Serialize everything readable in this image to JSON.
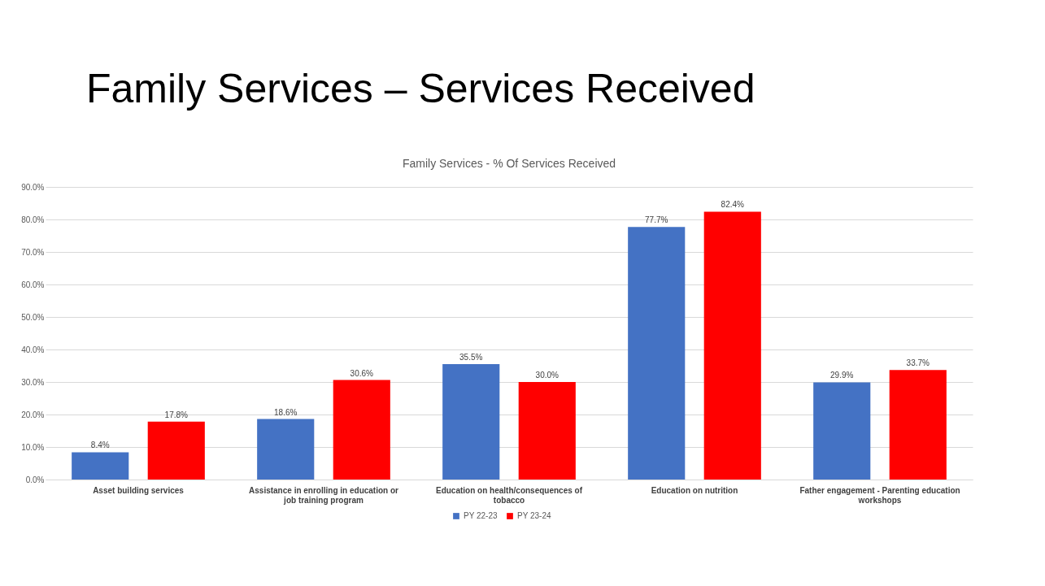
{
  "chart_data": {
    "type": "bar",
    "title": "Family Services – Services Received",
    "subtitle": "Family Services - % Of Services Received",
    "categories": [
      "Asset building services",
      "Assistance in enrolling in education or job training program",
      "Education on health/consequences of tobacco",
      "Education on nutrition",
      "Father engagement - Parenting education workshops"
    ],
    "series": [
      {
        "name": "PY 22-23",
        "color": "#4472c4",
        "values": [
          8.4,
          18.6,
          35.5,
          77.7,
          29.9
        ],
        "value_labels": [
          "8.4%",
          "18.6%",
          "35.5%",
          "77.7%",
          "29.9%"
        ]
      },
      {
        "name": "PY 23-24",
        "color": "#ff0000",
        "values": [
          17.8,
          30.6,
          30.0,
          82.4,
          33.7
        ],
        "value_labels": [
          "17.8%",
          "30.6%",
          "30.0%",
          "82.4%",
          "33.7%"
        ]
      }
    ],
    "ylim": [
      0,
      90
    ],
    "yticks": [
      {
        "value": 0,
        "label": "0.0%"
      },
      {
        "value": 10,
        "label": "10.0%"
      },
      {
        "value": 20,
        "label": "20.0%"
      },
      {
        "value": 30,
        "label": "30.0%"
      },
      {
        "value": 40,
        "label": "40.0%"
      },
      {
        "value": 50,
        "label": "50.0%"
      },
      {
        "value": 60,
        "label": "60.0%"
      },
      {
        "value": 70,
        "label": "70.0%"
      },
      {
        "value": 80,
        "label": "80.0%"
      },
      {
        "value": 90,
        "label": "90.0%"
      }
    ],
    "grid": "y",
    "legend": "bottom"
  }
}
